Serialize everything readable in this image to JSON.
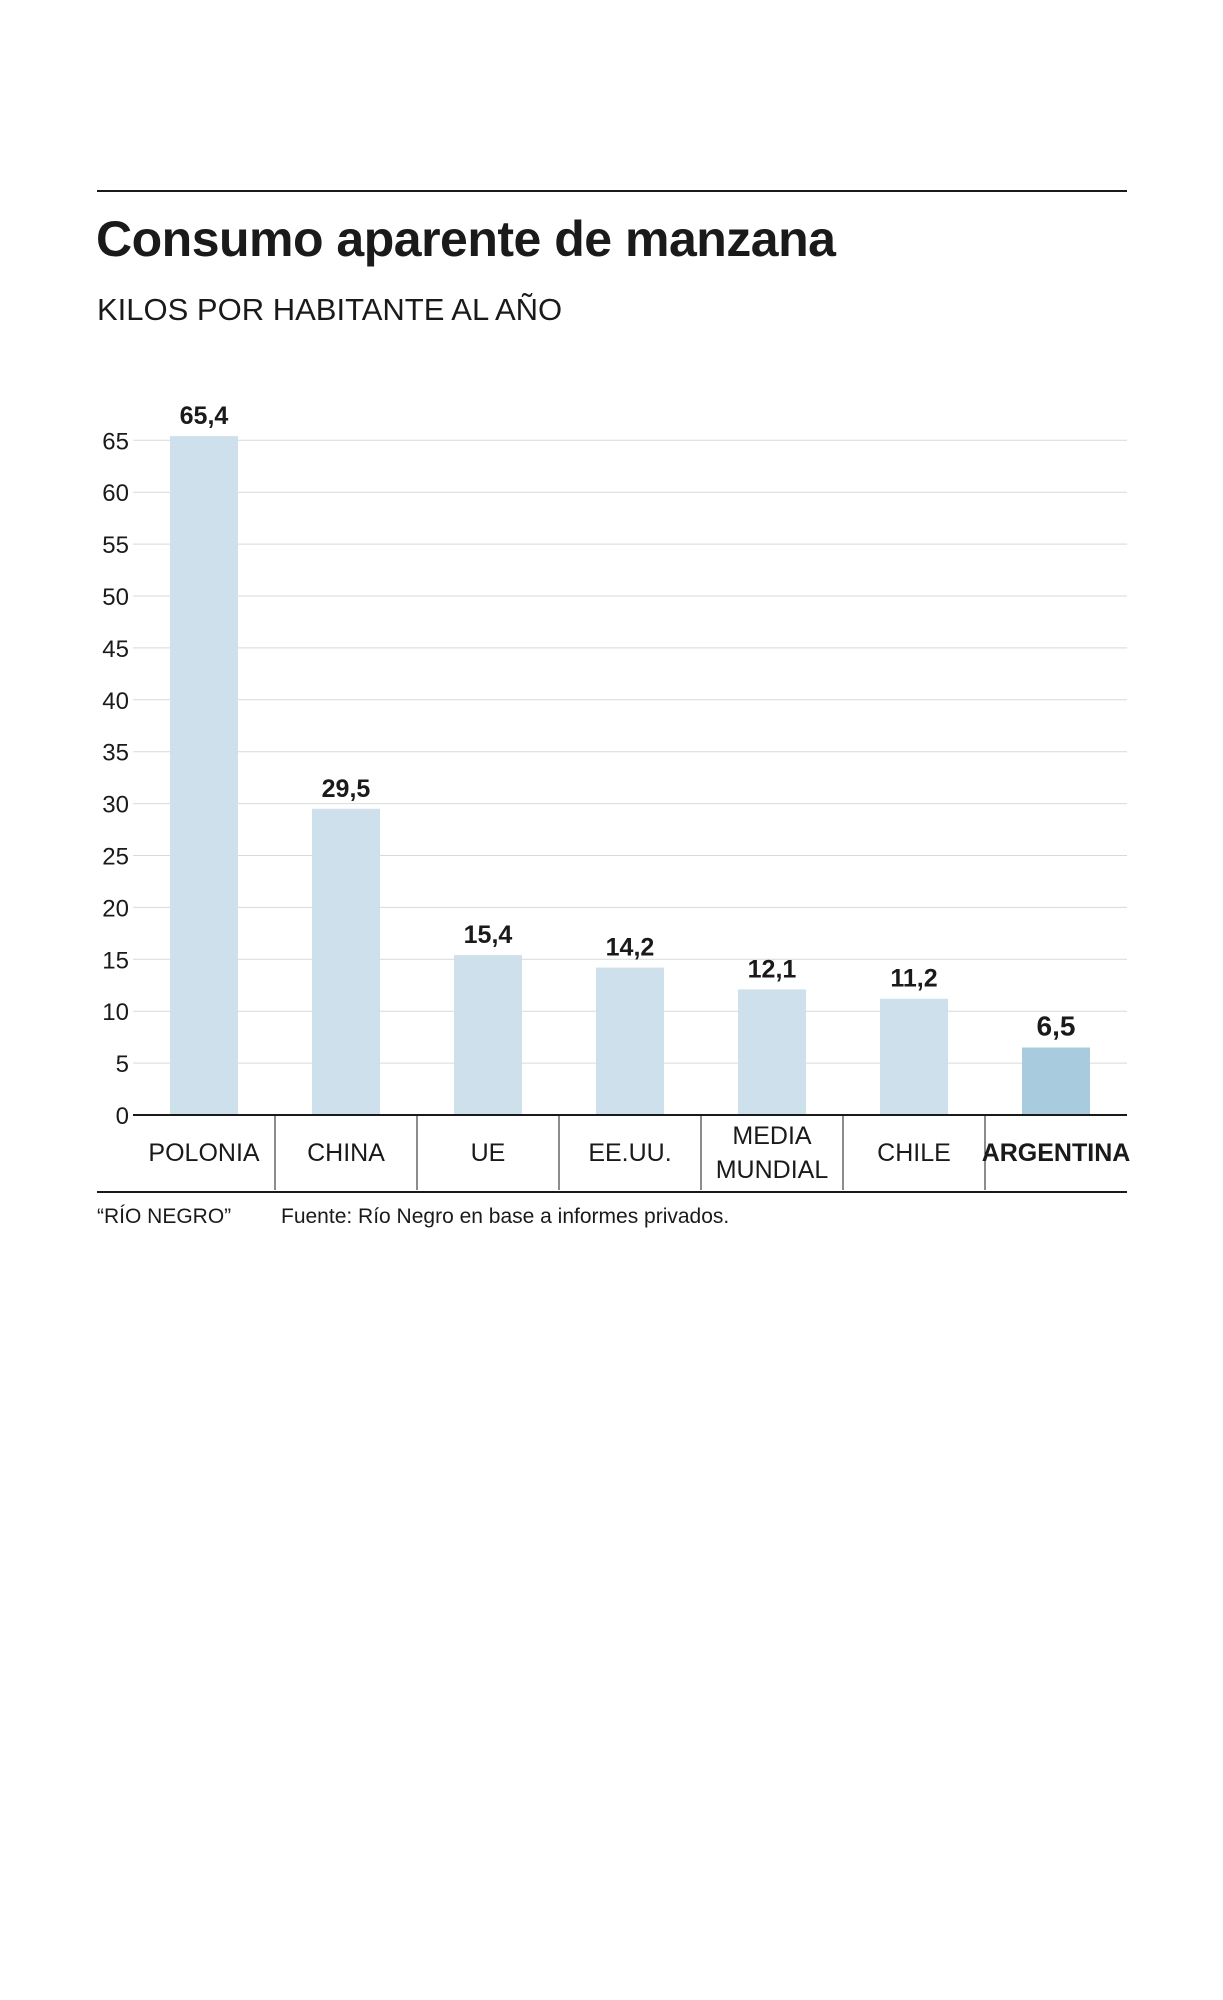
{
  "title": "Consumo aparente de manzana",
  "subtitle": "KILOS POR HABITANTE AL AÑO",
  "footer": {
    "credit": "“RÍO NEGRO”",
    "source": "Fuente: Río Negro en base a informes privados."
  },
  "colors": {
    "bar": "#cde0eb",
    "highlight_bar": "#a8cbdd",
    "grid": "#d9d9d9",
    "text": "#1a1a1a"
  },
  "chart_data": {
    "type": "bar",
    "categories": [
      "POLONIA",
      "CHINA",
      "UE",
      "EE.UU.",
      "MEDIA MUNDIAL",
      "CHILE",
      "ARGENTINA"
    ],
    "category_lines": [
      [
        "POLONIA"
      ],
      [
        "CHINA"
      ],
      [
        "UE"
      ],
      [
        "EE.UU."
      ],
      [
        "MEDIA",
        "MUNDIAL"
      ],
      [
        "CHILE"
      ],
      [
        "ARGENTINA"
      ]
    ],
    "values": [
      65.4,
      29.5,
      15.4,
      14.2,
      12.1,
      11.2,
      6.5
    ],
    "value_labels": [
      "65,4",
      "29,5",
      "15,4",
      "14,2",
      "12,1",
      "11,2",
      "6,5"
    ],
    "highlight": "ARGENTINA",
    "yticks": [
      0,
      5,
      10,
      15,
      20,
      25,
      30,
      35,
      40,
      45,
      50,
      55,
      60,
      65
    ],
    "ylim": [
      0,
      65
    ],
    "grid": true,
    "legend": "none"
  }
}
